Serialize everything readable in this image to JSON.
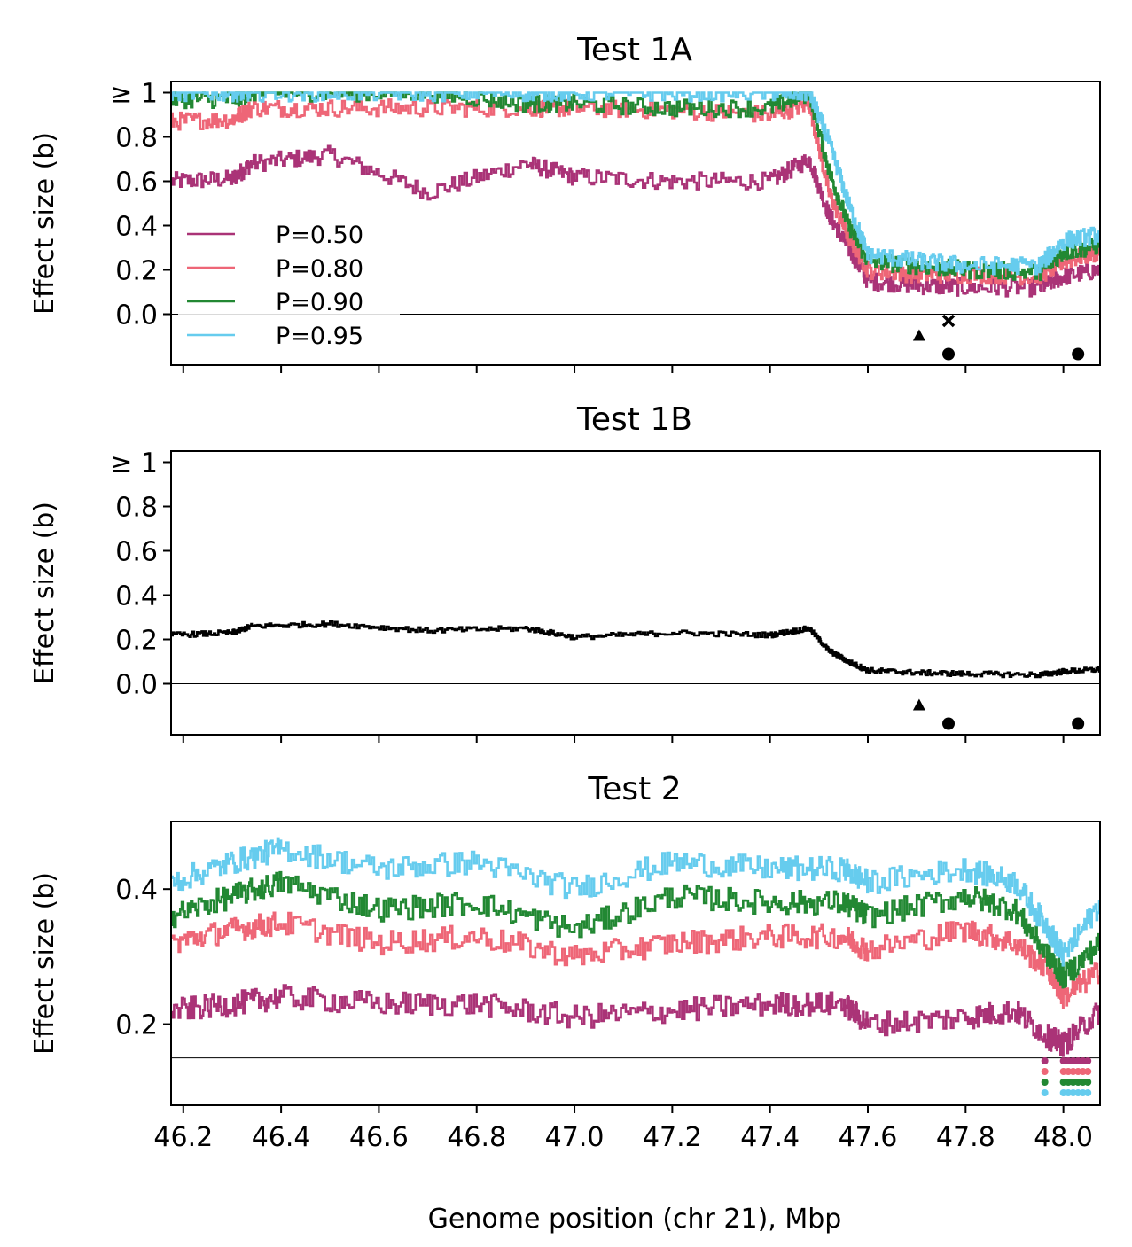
{
  "colors": {
    "p50": "#AA3377",
    "p80": "#EE6677",
    "p90": "#228833",
    "p95": "#66CCEE",
    "axis": "#000000"
  },
  "shared_x": {
    "label": "Genome position (chr 21), Mbp",
    "ticks": [
      46.2,
      46.4,
      46.6,
      46.8,
      47.0,
      47.2,
      47.4,
      47.6,
      47.8,
      48.0
    ],
    "tick_labels": [
      "46.2",
      "46.4",
      "46.6",
      "46.8",
      "47.0",
      "47.2",
      "47.4",
      "47.6",
      "47.8",
      "48.0"
    ],
    "xlim": [
      46.175,
      48.075
    ]
  },
  "chart_data": [
    {
      "type": "line",
      "title": "Test 1A",
      "ylabel": "Effect size (b)",
      "ylim": [
        -0.23,
        1.05
      ],
      "yticks": [
        0.0,
        0.2,
        0.4,
        0.6,
        0.8,
        1.0
      ],
      "ytick_labels": [
        "0.0",
        "0.2",
        "0.4",
        "0.6",
        "0.8",
        "≥ 1"
      ],
      "hline": 0.0,
      "legend": {
        "placement": "lower-left",
        "entries": [
          "P=0.50",
          "P=0.80",
          "P=0.90",
          "P=0.95"
        ]
      },
      "x": [
        46.175,
        46.3,
        46.34,
        46.5,
        46.7,
        46.9,
        47.0,
        47.2,
        47.4,
        47.48,
        47.52,
        47.56,
        47.6,
        47.7,
        47.8,
        47.95,
        48.0,
        48.075
      ],
      "series": [
        {
          "name": "P=0.50",
          "color_key": "p50",
          "values": [
            0.6,
            0.61,
            0.68,
            0.72,
            0.55,
            0.68,
            0.62,
            0.6,
            0.6,
            0.7,
            0.45,
            0.3,
            0.15,
            0.13,
            0.12,
            0.12,
            0.17,
            0.2
          ]
        },
        {
          "name": "P=0.80",
          "color_key": "p80",
          "values": [
            0.87,
            0.88,
            0.93,
            0.93,
            0.93,
            0.93,
            0.93,
            0.92,
            0.9,
            0.95,
            0.55,
            0.35,
            0.2,
            0.18,
            0.18,
            0.17,
            0.24,
            0.28
          ]
        },
        {
          "name": "P=0.90",
          "color_key": "p90",
          "values": [
            0.97,
            0.97,
            1.0,
            1.0,
            1.0,
            0.95,
            0.95,
            0.93,
            0.93,
            1.0,
            0.65,
            0.4,
            0.24,
            0.22,
            0.2,
            0.19,
            0.28,
            0.31
          ]
        },
        {
          "name": "P=0.95",
          "color_key": "p95",
          "values": [
            1.0,
            1.0,
            1.0,
            1.0,
            1.0,
            1.0,
            1.0,
            1.0,
            1.0,
            1.0,
            0.78,
            0.5,
            0.27,
            0.24,
            0.22,
            0.22,
            0.33,
            0.36
          ]
        }
      ],
      "markers": [
        {
          "x": 47.705,
          "y": -0.1,
          "symbol": "triangle"
        },
        {
          "x": 47.765,
          "y": -0.03,
          "symbol": "cross"
        },
        {
          "x": 47.765,
          "y": -0.18,
          "symbol": "circle"
        },
        {
          "x": 48.03,
          "y": -0.18,
          "symbol": "circle"
        }
      ]
    },
    {
      "type": "line",
      "title": "Test 1B",
      "ylabel": "Effect size (b)",
      "ylim": [
        -0.23,
        1.05
      ],
      "yticks": [
        0.0,
        0.2,
        0.4,
        0.6,
        0.8,
        1.0
      ],
      "ytick_labels": [
        "0.0",
        "0.2",
        "0.4",
        "0.6",
        "0.8",
        "≥ 1"
      ],
      "hline": 0.0,
      "x": [
        46.175,
        46.3,
        46.34,
        46.5,
        46.7,
        46.9,
        47.0,
        47.2,
        47.4,
        47.48,
        47.52,
        47.56,
        47.6,
        47.7,
        47.8,
        47.95,
        48.0,
        48.075
      ],
      "series": [
        {
          "name": "",
          "color": "#000000",
          "values": [
            0.22,
            0.23,
            0.26,
            0.27,
            0.24,
            0.25,
            0.21,
            0.23,
            0.22,
            0.25,
            0.15,
            0.1,
            0.06,
            0.05,
            0.045,
            0.04,
            0.055,
            0.065
          ]
        }
      ],
      "markers": [
        {
          "x": 47.705,
          "y": -0.1,
          "symbol": "triangle"
        },
        {
          "x": 47.765,
          "y": -0.18,
          "symbol": "circle"
        },
        {
          "x": 48.03,
          "y": -0.18,
          "symbol": "circle"
        }
      ]
    },
    {
      "type": "line",
      "title": "Test 2",
      "ylabel": "Effect size (b)",
      "ylim": [
        0.08,
        0.5
      ],
      "yticks": [
        0.2,
        0.4
      ],
      "ytick_labels": [
        "0.2",
        "0.4"
      ],
      "hline": 0.15,
      "x": [
        46.175,
        46.3,
        46.4,
        46.6,
        46.8,
        47.0,
        47.2,
        47.4,
        47.55,
        47.6,
        47.8,
        47.9,
        47.97,
        48.0,
        48.075
      ],
      "series": [
        {
          "name": "P=0.50",
          "color_key": "p50",
          "values": [
            0.22,
            0.23,
            0.24,
            0.23,
            0.23,
            0.21,
            0.22,
            0.23,
            0.23,
            0.2,
            0.21,
            0.22,
            0.18,
            0.17,
            0.22
          ]
        },
        {
          "name": "P=0.80",
          "color_key": "p80",
          "values": [
            0.32,
            0.34,
            0.35,
            0.32,
            0.33,
            0.3,
            0.32,
            0.33,
            0.33,
            0.31,
            0.34,
            0.32,
            0.28,
            0.24,
            0.28
          ]
        },
        {
          "name": "P=0.90",
          "color_key": "p90",
          "values": [
            0.36,
            0.39,
            0.41,
            0.37,
            0.38,
            0.34,
            0.39,
            0.38,
            0.38,
            0.36,
            0.39,
            0.37,
            0.3,
            0.27,
            0.32
          ]
        },
        {
          "name": "P=0.95",
          "color_key": "p95",
          "values": [
            0.41,
            0.44,
            0.46,
            0.43,
            0.44,
            0.4,
            0.44,
            0.43,
            0.43,
            0.41,
            0.43,
            0.41,
            0.34,
            0.3,
            0.38
          ]
        }
      ],
      "markers_strip": [
        {
          "color_key": "p50",
          "x": [
            47.962,
            48.0,
            48.01,
            48.02,
            48.03,
            48.04,
            48.05
          ]
        },
        {
          "color_key": "p80",
          "x": [
            47.962,
            48.0,
            48.01,
            48.02,
            48.03,
            48.04,
            48.05
          ]
        },
        {
          "color_key": "p90",
          "x": [
            47.962,
            48.0,
            48.01,
            48.02,
            48.03,
            48.04,
            48.05
          ]
        },
        {
          "color_key": "p95",
          "x": [
            47.962,
            48.0,
            48.01,
            48.02,
            48.03,
            48.04,
            48.05
          ]
        }
      ]
    }
  ]
}
